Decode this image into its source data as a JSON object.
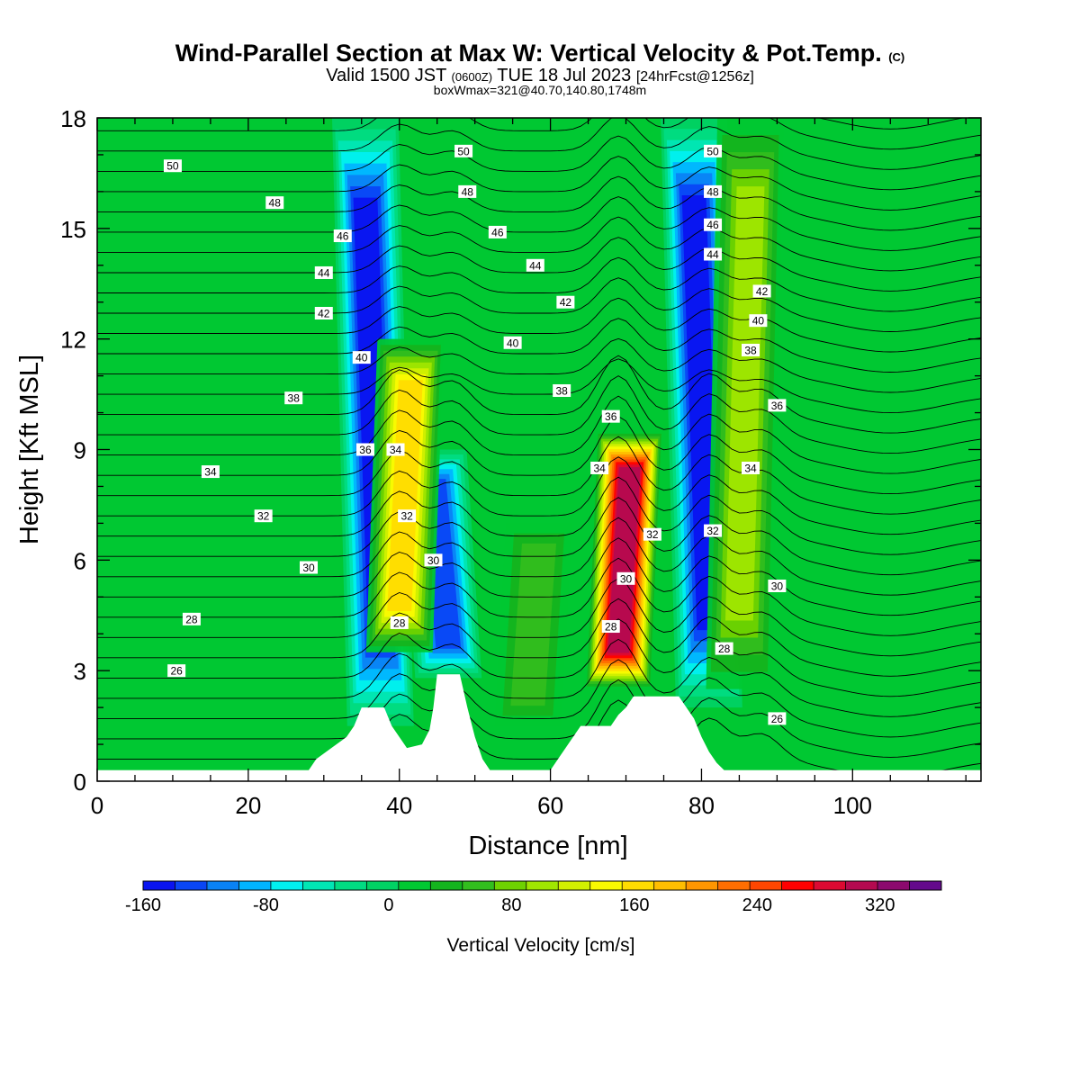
{
  "header": {
    "title_main": "Wind-Parallel Section at Max W: Vertical Velocity & Pot.Temp.",
    "title_mark": "(C)",
    "subtitle_a": "Valid 1500 JST",
    "subtitle_b": "(0600Z)",
    "subtitle_c": "TUE 18 Jul 2023",
    "subtitle_d": "[24hrFcst@1256z]",
    "box_info": "boxWmax=321@40.70,140.80,1748m"
  },
  "chart_data": {
    "type": "heatmap",
    "title": "Wind-Parallel Section at Max W: Vertical Velocity & Pot.Temp.",
    "xlabel": "Distance [nm]",
    "ylabel": "Height [Kft MSL]",
    "xlim": [
      0,
      117
    ],
    "ylim": [
      0,
      18
    ],
    "xticks": [
      0,
      20,
      40,
      60,
      80,
      100
    ],
    "yticks": [
      0,
      3,
      6,
      9,
      12,
      15,
      18
    ],
    "colorbar": {
      "label": "Vertical Velocity [cm/s]",
      "min": -160,
      "max": 360,
      "step": 20,
      "ticks": [
        -160,
        -80,
        0,
        80,
        160,
        240,
        320
      ],
      "colors": [
        "#0a14f0",
        "#0a46f5",
        "#0a82f5",
        "#00b4ff",
        "#00f0f0",
        "#00e6b4",
        "#00dc82",
        "#00d264",
        "#00c832",
        "#14b41e",
        "#32be1e",
        "#6ed200",
        "#a0e600",
        "#d2f000",
        "#fafa00",
        "#ffdc00",
        "#ffbe00",
        "#ff9600",
        "#ff6e00",
        "#ff4600",
        "#ff0000",
        "#dc0a32",
        "#b40a50",
        "#8c0a6e",
        "#640a8c"
      ]
    },
    "velocity_cores": [
      {
        "x": 37.5,
        "ymin": 1.5,
        "ymax": 18,
        "w": -150
      },
      {
        "x": 46.5,
        "ymin": 2.8,
        "ymax": 9,
        "w": -140
      },
      {
        "x": 81.0,
        "ymin": 2.0,
        "ymax": 18,
        "w": -150
      },
      {
        "x": 40.0,
        "ymin": 3.5,
        "ymax": 12,
        "w": 150
      },
      {
        "x": 69.0,
        "ymin": 2.5,
        "ymax": 9.5,
        "w": 300
      },
      {
        "x": 85.0,
        "ymin": 2.5,
        "ymax": 18,
        "w": 100
      },
      {
        "x": 57.0,
        "ymin": 1.5,
        "ymax": 7,
        "w": 60
      }
    ],
    "terrain": [
      [
        28,
        0.3
      ],
      [
        29,
        0.6
      ],
      [
        31,
        0.9
      ],
      [
        33,
        1.2
      ],
      [
        34,
        1.5
      ],
      [
        35,
        2.0
      ],
      [
        38,
        2.0
      ],
      [
        39,
        1.5
      ],
      [
        41,
        0.9
      ],
      [
        43,
        1.0
      ],
      [
        44,
        1.4
      ],
      [
        44.5,
        2.0
      ],
      [
        45,
        2.9
      ],
      [
        48,
        2.9
      ],
      [
        49,
        2.0
      ],
      [
        50,
        1.2
      ],
      [
        51,
        0.6
      ],
      [
        52,
        0.3
      ],
      [
        60,
        0.3
      ],
      [
        61,
        0.6
      ],
      [
        62,
        0.9
      ],
      [
        63,
        1.2
      ],
      [
        64,
        1.5
      ],
      [
        68,
        1.5
      ],
      [
        69,
        1.8
      ],
      [
        70,
        2.0
      ],
      [
        71,
        2.3
      ],
      [
        77,
        2.3
      ],
      [
        78,
        2.0
      ],
      [
        79,
        1.7
      ],
      [
        80,
        1.2
      ],
      [
        81,
        0.8
      ],
      [
        82,
        0.5
      ],
      [
        83,
        0.3
      ]
    ],
    "theta_labels": [
      {
        "v": "50",
        "x": 10,
        "y": 16.7
      },
      {
        "v": "48",
        "x": 23.5,
        "y": 15.7
      },
      {
        "v": "46",
        "x": 32.5,
        "y": 14.8
      },
      {
        "v": "44",
        "x": 30,
        "y": 13.8
      },
      {
        "v": "42",
        "x": 30,
        "y": 12.7
      },
      {
        "v": "40",
        "x": 35,
        "y": 11.5
      },
      {
        "v": "38",
        "x": 26,
        "y": 10.4
      },
      {
        "v": "36",
        "x": 35.5,
        "y": 9.0
      },
      {
        "v": "34",
        "x": 39.5,
        "y": 9.0
      },
      {
        "v": "34",
        "x": 15,
        "y": 8.4
      },
      {
        "v": "32",
        "x": 22,
        "y": 7.2
      },
      {
        "v": "32",
        "x": 41,
        "y": 7.2
      },
      {
        "v": "30",
        "x": 28,
        "y": 5.8
      },
      {
        "v": "30",
        "x": 44.5,
        "y": 6.0
      },
      {
        "v": "28",
        "x": 12.5,
        "y": 4.4
      },
      {
        "v": "28",
        "x": 40,
        "y": 4.3
      },
      {
        "v": "26",
        "x": 10.5,
        "y": 3.0
      },
      {
        "v": "50",
        "x": 48.5,
        "y": 17.1
      },
      {
        "v": "48",
        "x": 49,
        "y": 16.0
      },
      {
        "v": "46",
        "x": 53,
        "y": 14.9
      },
      {
        "v": "44",
        "x": 58,
        "y": 14.0
      },
      {
        "v": "42",
        "x": 62,
        "y": 13.0
      },
      {
        "v": "40",
        "x": 55,
        "y": 11.9
      },
      {
        "v": "38",
        "x": 61.5,
        "y": 10.6
      },
      {
        "v": "36",
        "x": 68,
        "y": 9.9
      },
      {
        "v": "34",
        "x": 66.5,
        "y": 8.5
      },
      {
        "v": "32",
        "x": 73.5,
        "y": 6.7
      },
      {
        "v": "30",
        "x": 70,
        "y": 5.5
      },
      {
        "v": "28",
        "x": 68,
        "y": 4.2
      },
      {
        "v": "50",
        "x": 81.5,
        "y": 17.1
      },
      {
        "v": "48",
        "x": 81.5,
        "y": 16.0
      },
      {
        "v": "46",
        "x": 81.5,
        "y": 15.1
      },
      {
        "v": "44",
        "x": 81.5,
        "y": 14.3
      },
      {
        "v": "42",
        "x": 88,
        "y": 13.3
      },
      {
        "v": "40",
        "x": 87.5,
        "y": 12.5
      },
      {
        "v": "38",
        "x": 86.5,
        "y": 11.7
      },
      {
        "v": "36",
        "x": 90,
        "y": 10.2
      },
      {
        "v": "34",
        "x": 86.5,
        "y": 8.5
      },
      {
        "v": "32",
        "x": 81.5,
        "y": 6.8
      },
      {
        "v": "30",
        "x": 90,
        "y": 5.3
      },
      {
        "v": "28",
        "x": 83,
        "y": 3.6
      },
      {
        "v": "26",
        "x": 90,
        "y": 1.7
      }
    ]
  }
}
